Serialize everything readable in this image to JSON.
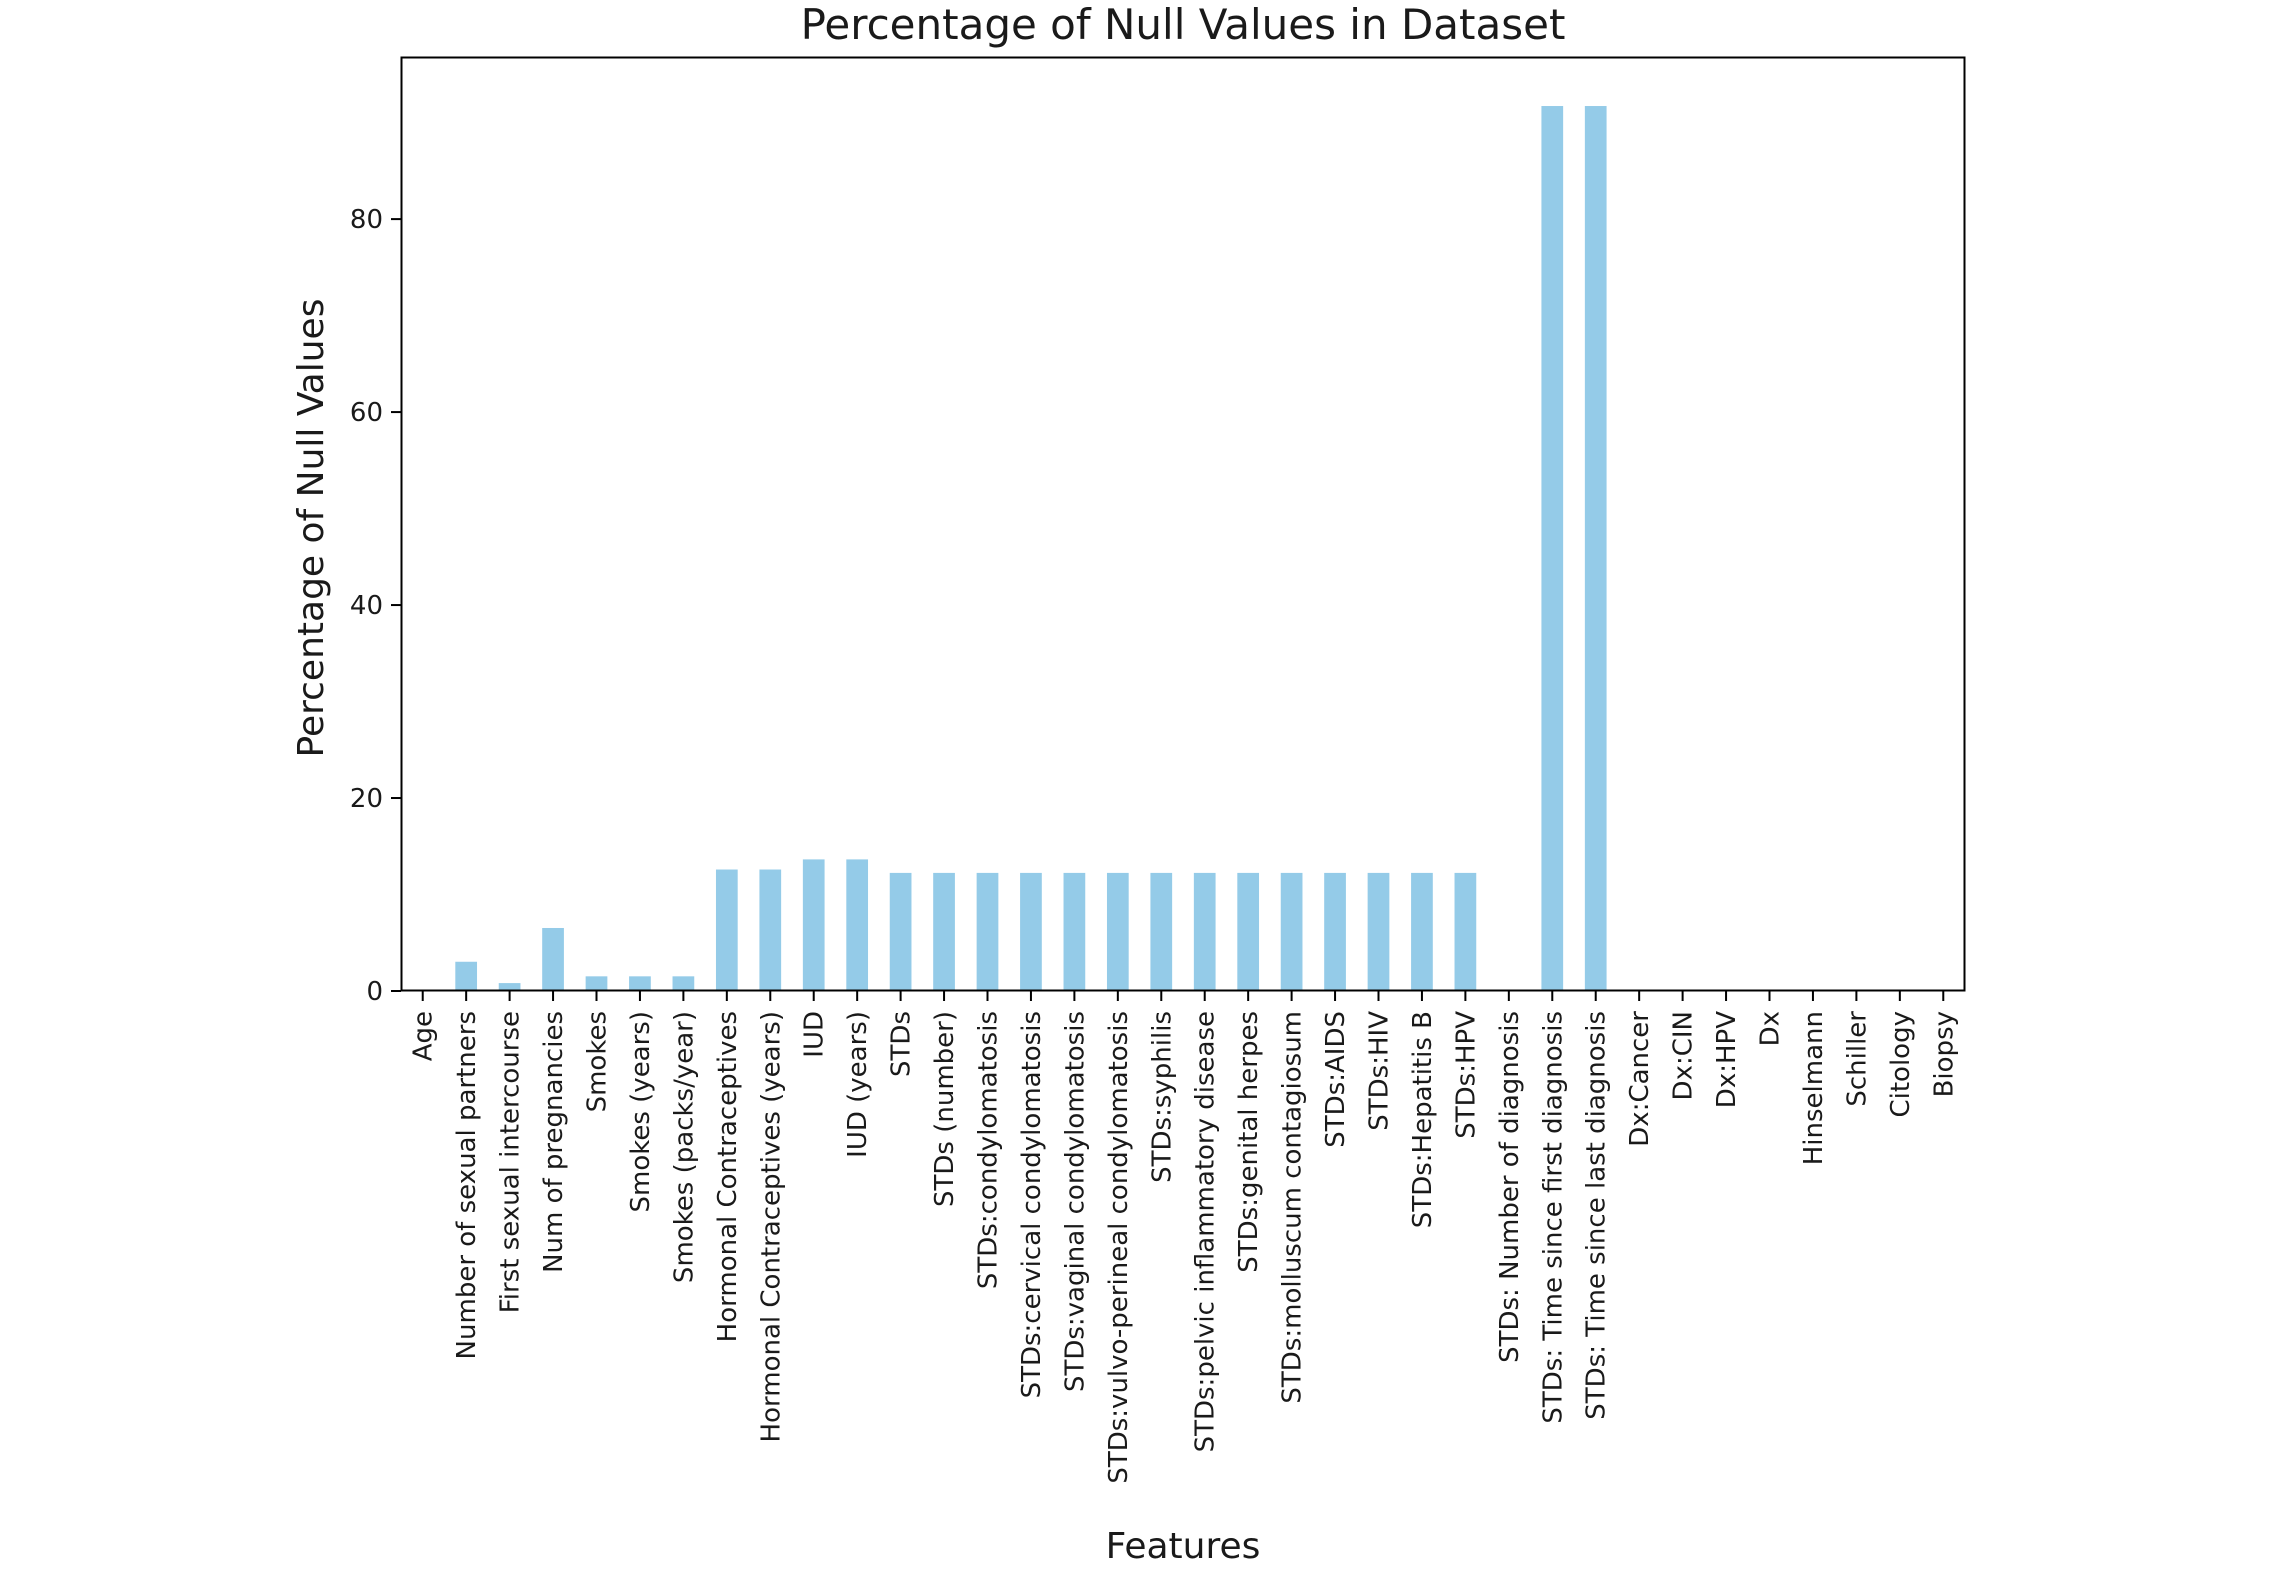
{
  "chart_data": {
    "type": "bar",
    "title": "Percentage of Null Values in Dataset",
    "xlabel": "Features",
    "ylabel": "Percentage of Null Values",
    "ylim": [
      0,
      96.8
    ],
    "yticks": [
      0,
      20,
      40,
      60,
      80
    ],
    "grid": false,
    "legend": "none",
    "bar_color": "#94cbe8",
    "categories": [
      "Age",
      "Number of sexual partners",
      "First sexual intercourse",
      "Num of pregnancies",
      "Smokes",
      "Smokes (years)",
      "Smokes (packs/year)",
      "Hormonal Contraceptives",
      "Hormonal Contraceptives (years)",
      "IUD",
      "IUD (years)",
      "STDs",
      "STDs (number)",
      "STDs:condylomatosis",
      "STDs:cervical condylomatosis",
      "STDs:vaginal condylomatosis",
      "STDs:vulvo-perineal condylomatosis",
      "STDs:syphilis",
      "STDs:pelvic inflammatory disease",
      "STDs:genital herpes",
      "STDs:molluscum contagiosum",
      "STDs:AIDS",
      "STDs:HIV",
      "STDs:Hepatitis B",
      "STDs:HPV",
      "STDs: Number of diagnosis",
      "STDs: Time since first diagnosis",
      "STDs: Time since last diagnosis",
      "Dx:Cancer",
      "Dx:CIN",
      "Dx:HPV",
      "Dx",
      "Hinselmann",
      "Schiller",
      "Citology",
      "Biopsy"
    ],
    "values": [
      0,
      3.03,
      0.82,
      6.53,
      1.52,
      1.52,
      1.52,
      12.59,
      12.59,
      13.64,
      13.64,
      12.24,
      12.24,
      12.24,
      12.24,
      12.24,
      12.24,
      12.24,
      12.24,
      12.24,
      12.24,
      12.24,
      12.24,
      12.24,
      12.24,
      0,
      91.72,
      91.72,
      0,
      0,
      0,
      0,
      0,
      0,
      0,
      0
    ]
  }
}
